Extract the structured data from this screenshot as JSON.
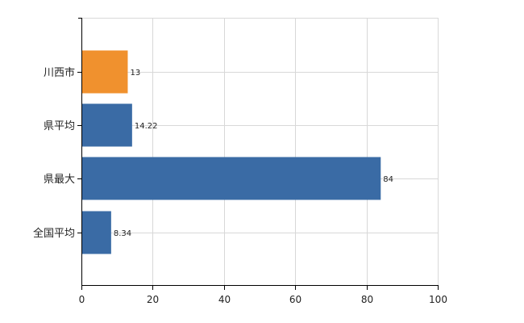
{
  "chart_data": {
    "type": "bar",
    "orientation": "horizontal",
    "categories": [
      "川西市",
      "県平均",
      "県最大",
      "全国平均"
    ],
    "values": [
      13,
      14.22,
      84,
      8.34
    ],
    "value_labels": [
      "13",
      "14.22",
      "84",
      "8.34"
    ],
    "bar_colors": [
      "#F0912E",
      "#3A6BA5",
      "#3A6BA5",
      "#3A6BA5"
    ],
    "xlim": [
      0,
      100
    ],
    "x_ticks": [
      0,
      20,
      40,
      60,
      80,
      100
    ],
    "title": "",
    "xlabel": "",
    "ylabel": "",
    "grid": true,
    "grid_color": "#d8d8d8",
    "axis_color": "#000000"
  }
}
